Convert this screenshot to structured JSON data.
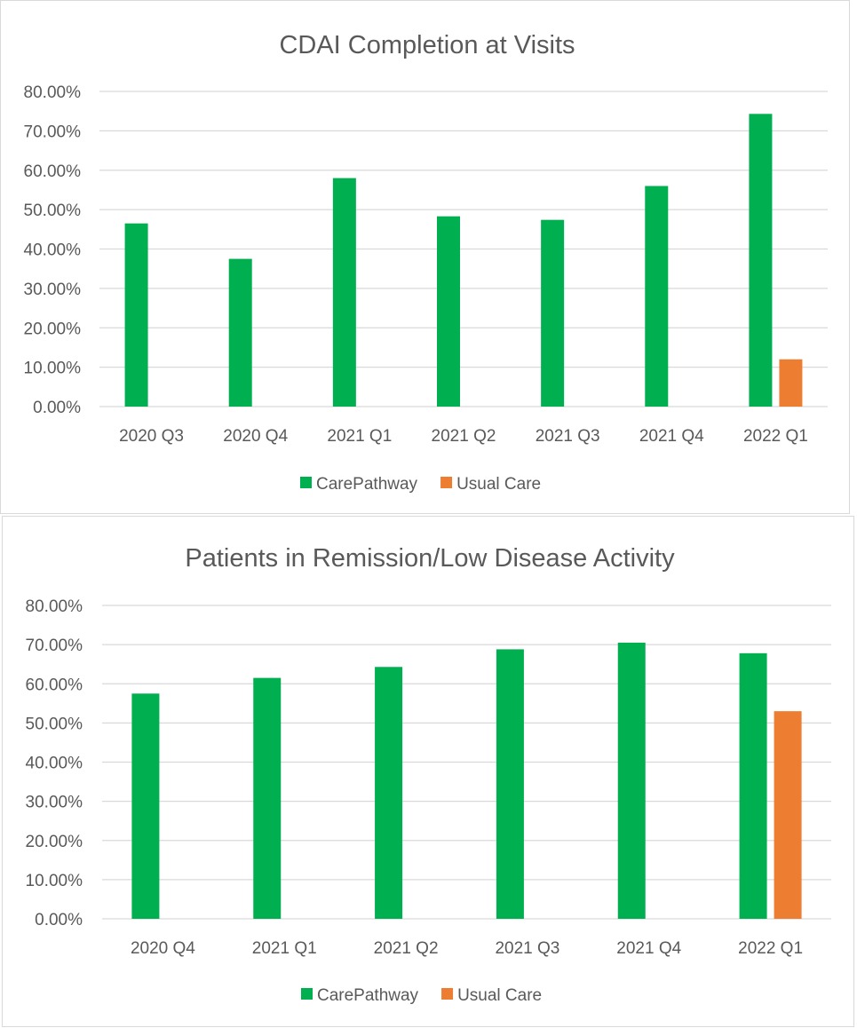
{
  "colors": {
    "carepathway": "#00b050",
    "usual_care": "#ed7d31",
    "gridline": "#d9d9d9",
    "text": "#595959"
  },
  "chart_data": [
    {
      "type": "bar",
      "title": "CDAI Completion at Visits",
      "categories": [
        "2020 Q3",
        "2020 Q4",
        "2021 Q1",
        "2021 Q2",
        "2021 Q3",
        "2021 Q4",
        "2022 Q1"
      ],
      "series": [
        {
          "name": "CarePathway",
          "values": [
            0.465,
            0.375,
            0.58,
            0.483,
            0.474,
            0.56,
            0.743
          ]
        },
        {
          "name": "Usual Care",
          "values": [
            null,
            null,
            null,
            null,
            null,
            null,
            0.12
          ]
        }
      ],
      "y_ticks": [
        "0.00%",
        "10.00%",
        "20.00%",
        "30.00%",
        "40.00%",
        "50.00%",
        "60.00%",
        "70.00%",
        "80.00%"
      ],
      "ylim": [
        0,
        0.8
      ],
      "grid": true,
      "legend": "bottom"
    },
    {
      "type": "bar",
      "title": "Patients in Remission/Low Disease Activity",
      "categories": [
        "2020 Q4",
        "2021 Q1",
        "2021 Q2",
        "2021 Q3",
        "2021 Q4",
        "2022 Q1"
      ],
      "series": [
        {
          "name": "CarePathway",
          "values": [
            0.575,
            0.615,
            0.643,
            0.688,
            0.705,
            0.678
          ]
        },
        {
          "name": "Usual Care",
          "values": [
            null,
            null,
            null,
            null,
            null,
            0.53
          ]
        }
      ],
      "y_ticks": [
        "0.00%",
        "10.00%",
        "20.00%",
        "30.00%",
        "40.00%",
        "50.00%",
        "60.00%",
        "70.00%",
        "80.00%"
      ],
      "ylim": [
        0,
        0.8
      ],
      "grid": true,
      "legend": "bottom"
    }
  ]
}
